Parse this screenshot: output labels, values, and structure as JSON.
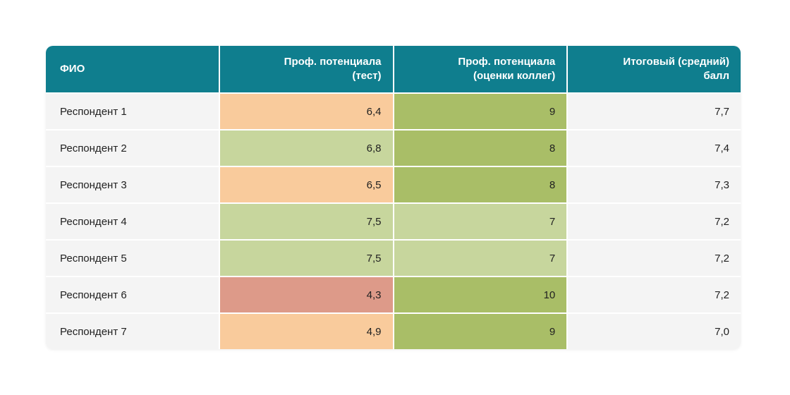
{
  "colors": {
    "header_bg": "#0f7e8e",
    "header_text": "#ffffff",
    "row_bg": "#f4f4f4",
    "body_text": "#212121",
    "score_orange": "#f9cb9c",
    "score_green_light": "#c7d69d",
    "score_green": "#a9be67",
    "score_red": "#dd9a89",
    "page_bg": "#ffffff"
  },
  "table": {
    "columns": [
      {
        "label": "ФИО"
      },
      {
        "label": "Проф. потенциала\n(тест)"
      },
      {
        "label": "Проф. потенциала\n(оценки коллег)"
      },
      {
        "label": "Итоговый (средний)\nбалл"
      }
    ],
    "rows": [
      {
        "name": "Респондент 1",
        "test_score": "6,4",
        "test_color": "#f9cb9c",
        "peer_score": "9",
        "peer_color": "#a9be67",
        "avg_score": "7,7"
      },
      {
        "name": "Респондент 2",
        "test_score": "6,8",
        "test_color": "#c7d69d",
        "peer_score": "8",
        "peer_color": "#a9be67",
        "avg_score": "7,4"
      },
      {
        "name": "Респондент 3",
        "test_score": "6,5",
        "test_color": "#f9cb9c",
        "peer_score": "8",
        "peer_color": "#a9be67",
        "avg_score": "7,3"
      },
      {
        "name": "Респондент 4",
        "test_score": "7,5",
        "test_color": "#c7d69d",
        "peer_score": "7",
        "peer_color": "#c7d69d",
        "avg_score": "7,2"
      },
      {
        "name": "Респондент 5",
        "test_score": "7,5",
        "test_color": "#c7d69d",
        "peer_score": "7",
        "peer_color": "#c7d69d",
        "avg_score": "7,2"
      },
      {
        "name": "Респондент 6",
        "test_score": "4,3",
        "test_color": "#dd9a89",
        "peer_score": "10",
        "peer_color": "#a9be67",
        "avg_score": "7,2"
      },
      {
        "name": "Респондент 7",
        "test_score": "4,9",
        "test_color": "#f9cb9c",
        "peer_score": "9",
        "peer_color": "#a9be67",
        "avg_score": "7,0"
      }
    ]
  },
  "chart_data": {
    "type": "table",
    "title": "",
    "columns": [
      "ФИО",
      "Проф. потенциала (тест)",
      "Проф. потенциала (оценки коллег)",
      "Итоговый (средний) балл"
    ],
    "rows": [
      [
        "Респондент 1",
        6.4,
        9,
        7.7
      ],
      [
        "Респондент 2",
        6.8,
        8,
        7.4
      ],
      [
        "Респондент 3",
        6.5,
        8,
        7.3
      ],
      [
        "Респондент 4",
        7.5,
        7,
        7.2
      ],
      [
        "Респондент 5",
        7.5,
        7,
        7.2
      ],
      [
        "Респондент 6",
        4.3,
        10,
        7.2
      ],
      [
        "Респондент 7",
        4.9,
        9,
        7.0
      ]
    ],
    "notes": "Cell backgrounds encode score bands: red=low, orange=below average, light green=average, green=high"
  }
}
